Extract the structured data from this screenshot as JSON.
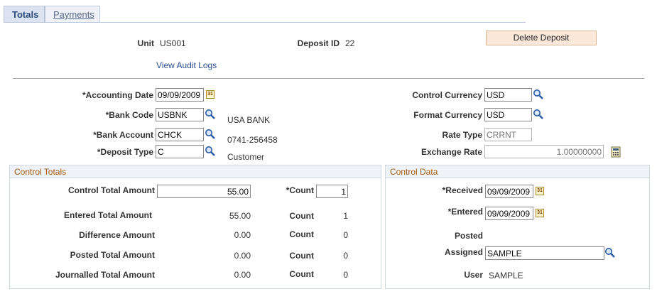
{
  "tabs": [
    {
      "label": "Totals"
    },
    {
      "label": "Payments"
    }
  ],
  "header": {
    "unit_label": "Unit",
    "unit_value": "US001",
    "deposit_id_label": "Deposit ID",
    "deposit_id_value": "22",
    "delete_button": "Delete Deposit",
    "audit_link": "View Audit Logs"
  },
  "left_fields": {
    "accounting_date_label": "*Accounting Date",
    "accounting_date_value": "09/09/2009",
    "bank_code_label": "*Bank Code",
    "bank_code_value": "USBNK",
    "bank_code_desc": "USA BANK",
    "bank_account_label": "*Bank Account",
    "bank_account_value": "CHCK",
    "bank_account_desc": "0741-256458",
    "deposit_type_label": "*Deposit Type",
    "deposit_type_value": "C",
    "deposit_type_desc": "Customer"
  },
  "right_fields": {
    "control_currency_label": "Control Currency",
    "control_currency_value": "USD",
    "format_currency_label": "Format Currency",
    "format_currency_value": "USD",
    "rate_type_label": "Rate Type",
    "rate_type_value": "CRRNT",
    "exchange_rate_label": "Exchange Rate",
    "exchange_rate_value": "1.00000000"
  },
  "control_totals": {
    "title": "Control Totals",
    "control_total_amount_label": "Control Total Amount",
    "control_total_amount_value": "55.00",
    "count_req_label": "*Count",
    "count_req_value": "1",
    "count_label": "Count",
    "rows": [
      {
        "label": "Entered Total Amount",
        "amount": "55.00",
        "count": "1"
      },
      {
        "label": "Difference Amount",
        "amount": "0.00",
        "count": "0"
      },
      {
        "label": "Posted Total Amount",
        "amount": "0.00",
        "count": "0"
      },
      {
        "label": "Journalled Total Amount",
        "amount": "0.00",
        "count": "0"
      }
    ]
  },
  "control_data": {
    "title": "Control Data",
    "received_label": "*Received",
    "received_value": "09/09/2009",
    "entered_label": "*Entered",
    "entered_value": "09/09/2009",
    "posted_label": "Posted",
    "assigned_label": "Assigned",
    "assigned_value": "SAMPLE",
    "user_label": "User",
    "user_value": "SAMPLE"
  },
  "icons": {
    "lookup": "magnifier-icon",
    "calendar": "calendar-icon",
    "calculator": "calculator-icon"
  }
}
